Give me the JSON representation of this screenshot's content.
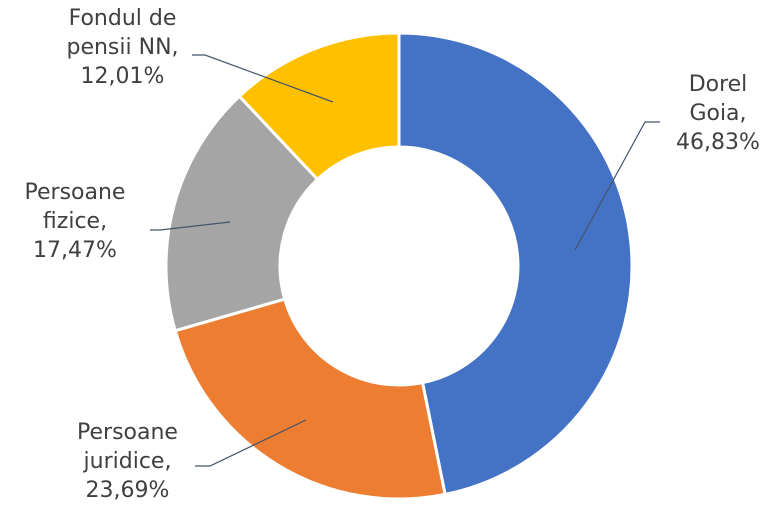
{
  "chart_data": {
    "type": "donut",
    "categories": [
      "Dorel Goia,",
      "Persoane juridice,",
      "Persoane fizice,",
      "Fondul de pensii NN,"
    ],
    "values": [
      46.83,
      23.69,
      17.47,
      12.01
    ],
    "value_labels": [
      "46,83%",
      "23,69%",
      "17,47%",
      "12,01%"
    ],
    "colors": [
      "#4472c4",
      "#ed7d31",
      "#a5a5a5",
      "#ffc000"
    ]
  }
}
